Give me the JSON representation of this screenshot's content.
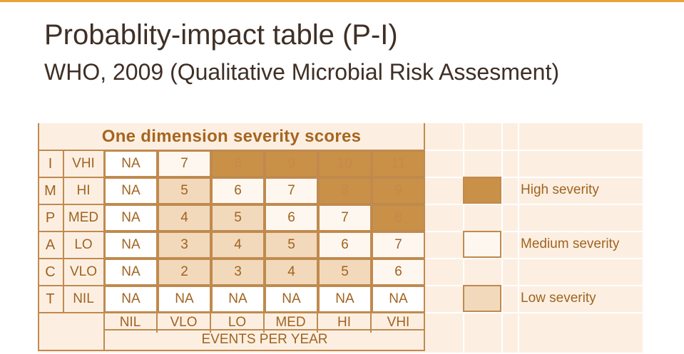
{
  "slide": {
    "title": "Probablity-impact table (P-I)",
    "subtitle": "WHO, 2009 (Qualitative Microbial Risk Assesment)"
  },
  "table": {
    "heading": "One dimension severity scores",
    "impact_letters": [
      "I",
      "M",
      "P",
      "A",
      "C",
      "T"
    ],
    "row_labels": [
      "VHI",
      "HI",
      "MED",
      "LO",
      "VLO",
      "NIL"
    ],
    "rows": [
      {
        "cells": [
          "NA",
          "7",
          "8",
          "9",
          "10",
          "11"
        ],
        "severity": [
          "white",
          "medium",
          "high",
          "high",
          "high",
          "high"
        ]
      },
      {
        "cells": [
          "NA",
          "5",
          "6",
          "7",
          "8",
          "9"
        ],
        "severity": [
          "white",
          "low",
          "medium",
          "medium",
          "high",
          "high"
        ]
      },
      {
        "cells": [
          "NA",
          "4",
          "5",
          "6",
          "7",
          "8"
        ],
        "severity": [
          "white",
          "low",
          "low",
          "medium",
          "medium",
          "high"
        ]
      },
      {
        "cells": [
          "NA",
          "3",
          "4",
          "5",
          "6",
          "7"
        ],
        "severity": [
          "white",
          "low",
          "low",
          "low",
          "medium",
          "medium"
        ]
      },
      {
        "cells": [
          "NA",
          "2",
          "3",
          "4",
          "5",
          "6"
        ],
        "severity": [
          "white",
          "low",
          "low",
          "low",
          "low",
          "medium"
        ]
      },
      {
        "cells": [
          "NA",
          "NA",
          "NA",
          "NA",
          "NA",
          "NA"
        ],
        "severity": [
          "white",
          "white",
          "white",
          "white",
          "white",
          "white"
        ]
      }
    ],
    "column_labels": [
      "NIL",
      "VLO",
      "LO",
      "MED",
      "HI",
      "VHI"
    ],
    "x_axis_label": "EVENTS PER YEAR"
  },
  "legend": [
    {
      "label": "High severity",
      "color": "#c99048"
    },
    {
      "label": "Medium severity",
      "color": "#fdf7f0"
    },
    {
      "label": "Low severity",
      "color": "#f2d9bb"
    }
  ],
  "colors": {
    "accent": "#e8a33a",
    "text_dark": "#3f2f25",
    "table_text": "#a0631f",
    "grid": "#c08a4e",
    "high": "#c99048",
    "medium": "#fdf7f0",
    "low": "#f2d9bb",
    "background": "#fcefe2"
  }
}
